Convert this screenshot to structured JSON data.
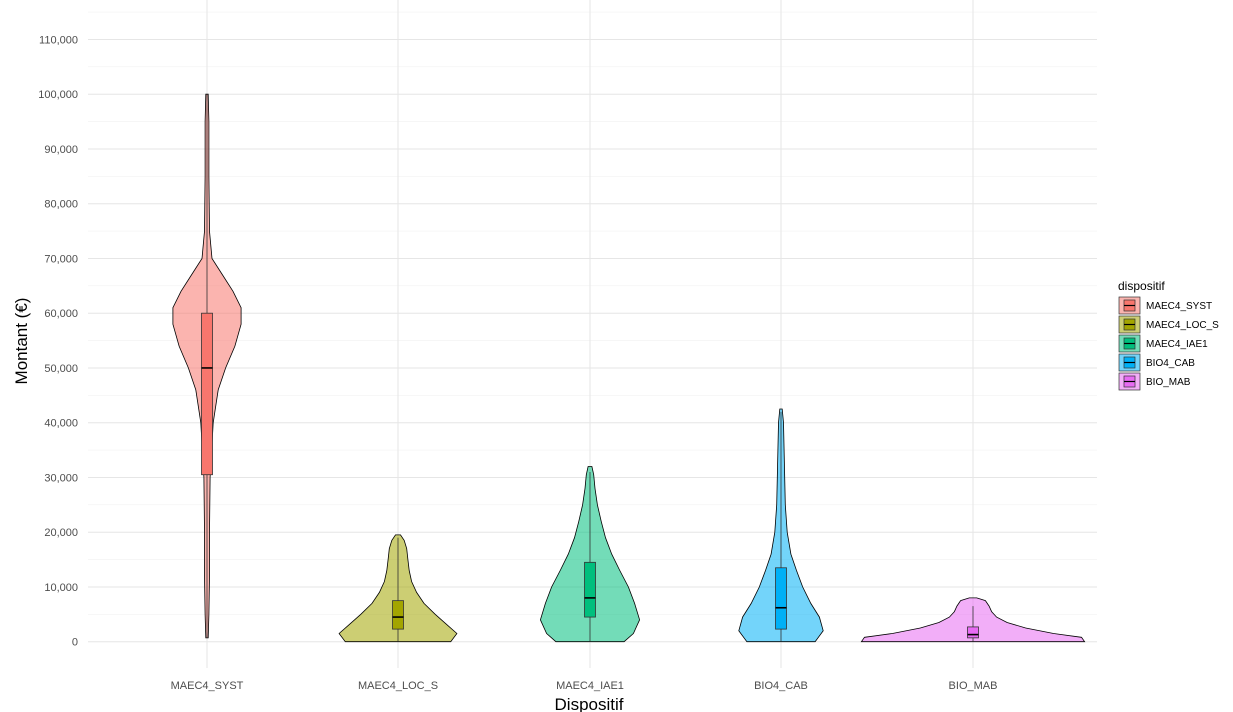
{
  "chart_data": {
    "type": "violin",
    "title": "",
    "xlabel": "Dispositif",
    "ylabel": "Montant (€)",
    "ylim": [
      -5000,
      115000
    ],
    "yticks": [
      0,
      10000,
      20000,
      30000,
      40000,
      50000,
      60000,
      70000,
      80000,
      90000,
      100000,
      110000
    ],
    "ytick_labels": [
      "0",
      "10,000",
      "20,000",
      "30,000",
      "40,000",
      "50,000",
      "60,000",
      "70,000",
      "80,000",
      "90,000",
      "100,000",
      "110,000"
    ],
    "grid": true,
    "categories": [
      "MAEC4_SYST",
      "MAEC4_LOC_S",
      "MAEC4_IAE1",
      "BIO4_CAB",
      "BIO_MAB"
    ],
    "legend": {
      "title": "dispositif",
      "position": "right",
      "entries": [
        "MAEC4_SYST",
        "MAEC4_LOC_S",
        "MAEC4_IAE1",
        "BIO4_CAB",
        "BIO_MAB"
      ]
    },
    "series": [
      {
        "name": "MAEC4_SYST",
        "color": "#F8766D",
        "boxplot": {
          "whisker_low": 700,
          "q1": 30500,
          "median": 50000,
          "q3": 60000,
          "whisker_high": 100000
        },
        "violin": [
          [
            700,
            0.02
          ],
          [
            5000,
            0.03
          ],
          [
            12000,
            0.04
          ],
          [
            20000,
            0.04
          ],
          [
            30000,
            0.05
          ],
          [
            40000,
            0.1
          ],
          [
            46000,
            0.18
          ],
          [
            50000,
            0.3
          ],
          [
            54000,
            0.45
          ],
          [
            58000,
            0.55
          ],
          [
            61000,
            0.55
          ],
          [
            64000,
            0.42
          ],
          [
            67000,
            0.25
          ],
          [
            70000,
            0.08
          ],
          [
            75000,
            0.04
          ],
          [
            85000,
            0.03
          ],
          [
            95000,
            0.03
          ],
          [
            100000,
            0.02
          ]
        ]
      },
      {
        "name": "MAEC4_LOC_S",
        "color": "#A3A500",
        "boxplot": {
          "whisker_low": 0,
          "q1": 2300,
          "median": 4500,
          "q3": 7500,
          "whisker_high": 19000
        },
        "violin": [
          [
            0,
            0.85
          ],
          [
            1500,
            0.95
          ],
          [
            3000,
            0.8
          ],
          [
            5000,
            0.6
          ],
          [
            7000,
            0.42
          ],
          [
            9000,
            0.3
          ],
          [
            11000,
            0.22
          ],
          [
            13000,
            0.18
          ],
          [
            15000,
            0.16
          ],
          [
            17000,
            0.14
          ],
          [
            18500,
            0.1
          ],
          [
            19500,
            0.04
          ]
        ]
      },
      {
        "name": "MAEC4_IAE1",
        "color": "#00BF7D",
        "boxplot": {
          "whisker_low": 0,
          "q1": 4500,
          "median": 8000,
          "q3": 14500,
          "whisker_high": 31000
        },
        "violin": [
          [
            0,
            0.55
          ],
          [
            1500,
            0.7
          ],
          [
            4000,
            0.8
          ],
          [
            7000,
            0.72
          ],
          [
            10000,
            0.62
          ],
          [
            13000,
            0.48
          ],
          [
            16000,
            0.35
          ],
          [
            19000,
            0.25
          ],
          [
            22000,
            0.18
          ],
          [
            25000,
            0.12
          ],
          [
            28000,
            0.08
          ],
          [
            30500,
            0.06
          ],
          [
            32000,
            0.03
          ]
        ]
      },
      {
        "name": "BIO4_CAB",
        "color": "#00B0F6",
        "boxplot": {
          "whisker_low": 0,
          "q1": 2300,
          "median": 6200,
          "q3": 13500,
          "whisker_high": 42000
        },
        "violin": [
          [
            0,
            0.55
          ],
          [
            2000,
            0.68
          ],
          [
            4500,
            0.62
          ],
          [
            7000,
            0.48
          ],
          [
            10000,
            0.35
          ],
          [
            13000,
            0.25
          ],
          [
            16000,
            0.16
          ],
          [
            20000,
            0.1
          ],
          [
            25000,
            0.07
          ],
          [
            30000,
            0.06
          ],
          [
            35000,
            0.05
          ],
          [
            40000,
            0.04
          ],
          [
            42500,
            0.02
          ]
        ]
      },
      {
        "name": "BIO_MAB",
        "color": "#E76BF3",
        "boxplot": {
          "whisker_low": 0,
          "q1": 700,
          "median": 1300,
          "q3": 2700,
          "whisker_high": 6500
        },
        "violin": [
          [
            0,
            1.8
          ],
          [
            800,
            1.75
          ],
          [
            1500,
            1.3
          ],
          [
            2500,
            0.85
          ],
          [
            3500,
            0.55
          ],
          [
            4500,
            0.38
          ],
          [
            5500,
            0.3
          ],
          [
            6500,
            0.26
          ],
          [
            7500,
            0.2
          ],
          [
            8000,
            0.06
          ]
        ]
      }
    ]
  }
}
